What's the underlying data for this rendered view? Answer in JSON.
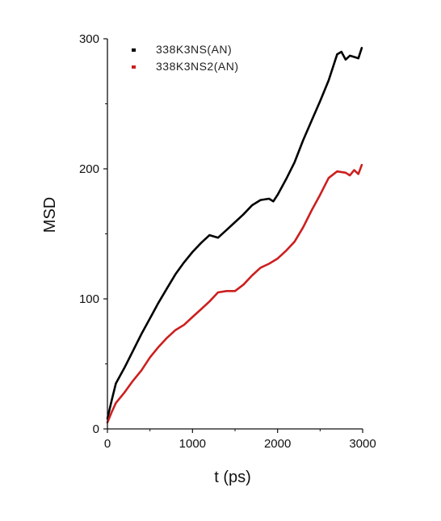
{
  "chart_data": {
    "type": "line",
    "title": "",
    "xlabel": "t (ps)",
    "ylabel": "MSD",
    "xlim": [
      0,
      3000
    ],
    "ylim": [
      0,
      300
    ],
    "xticks": [
      0,
      1000,
      2000,
      3000
    ],
    "yticks": [
      0,
      100,
      200,
      300
    ],
    "xtick_labels": [
      "0",
      "1000",
      "2000",
      "3000"
    ],
    "ytick_labels": [
      "0",
      "100",
      "200",
      "300"
    ],
    "grid": false,
    "legend_position": "top-left",
    "series": [
      {
        "name": "338K3NS(AN)",
        "color": "#000000",
        "x": [
          0,
          50,
          100,
          200,
          300,
          400,
          500,
          600,
          700,
          800,
          900,
          1000,
          1100,
          1200,
          1300,
          1400,
          1500,
          1600,
          1700,
          1800,
          1900,
          1950,
          2000,
          2100,
          2200,
          2300,
          2400,
          2500,
          2600,
          2700,
          2750,
          2800,
          2850,
          2900,
          2950,
          2990
        ],
        "y": [
          8,
          22,
          35,
          47,
          60,
          73,
          85,
          97,
          108,
          119,
          128,
          136,
          143,
          149,
          147,
          153,
          159,
          165,
          172,
          176,
          177,
          175,
          180,
          192,
          205,
          222,
          237,
          252,
          268,
          288,
          290,
          284,
          287,
          286,
          285,
          293
        ]
      },
      {
        "name": "338K3NS2(AN)",
        "color": "#cc1f1f",
        "x": [
          0,
          50,
          100,
          200,
          300,
          400,
          500,
          600,
          700,
          800,
          900,
          1000,
          1100,
          1200,
          1300,
          1400,
          1500,
          1600,
          1700,
          1800,
          1900,
          2000,
          2100,
          2200,
          2300,
          2400,
          2500,
          2600,
          2700,
          2800,
          2850,
          2900,
          2950,
          2990
        ],
        "y": [
          5,
          13,
          20,
          28,
          37,
          45,
          55,
          63,
          70,
          76,
          80,
          86,
          92,
          98,
          105,
          106,
          106,
          111,
          118,
          124,
          127,
          131,
          137,
          144,
          155,
          168,
          180,
          193,
          198,
          197,
          195,
          199,
          196,
          203
        ]
      }
    ]
  }
}
